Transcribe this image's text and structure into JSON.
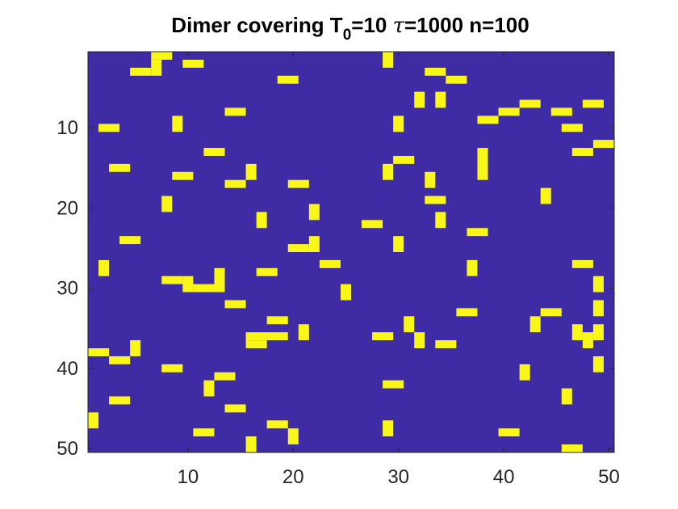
{
  "chart_data": {
    "type": "heatmap",
    "title": {
      "prefix": "Dimer covering T",
      "subscript": "0",
      "mid": "=10 ",
      "tau_symbol": "τ",
      "suffix": "=1000 n=100"
    },
    "xlabel": "",
    "ylabel": "",
    "xlim": [
      0.5,
      50.5
    ],
    "ylim": [
      0.5,
      50.5
    ],
    "y_direction": "reverse",
    "grid": false,
    "colors": {
      "background": "#3f2ba4",
      "dimer": "#f9f719"
    },
    "x_ticks": [
      10,
      20,
      30,
      40,
      50
    ],
    "y_ticks": [
      10,
      20,
      30,
      40,
      50
    ],
    "x_tick_labels": [
      "10",
      "20",
      "30",
      "40",
      "50"
    ],
    "y_tick_labels": [
      "10",
      "20",
      "30",
      "40",
      "50"
    ],
    "value_map": {
      "0": "empty",
      "1": "dimer"
    },
    "dimers": [
      [
        7,
        1,
        8,
        1
      ],
      [
        5,
        3,
        6,
        3
      ],
      [
        7,
        2,
        7,
        3
      ],
      [
        10,
        2,
        11,
        2
      ],
      [
        19,
        4,
        20,
        4
      ],
      [
        29,
        1,
        29,
        2
      ],
      [
        33,
        3,
        34,
        3
      ],
      [
        35,
        4,
        36,
        4
      ],
      [
        32,
        6,
        32,
        7
      ],
      [
        34,
        6,
        34,
        7
      ],
      [
        14,
        8,
        15,
        8
      ],
      [
        9,
        9,
        9,
        10
      ],
      [
        2,
        10,
        3,
        10
      ],
      [
        30,
        9,
        30,
        10
      ],
      [
        38,
        9,
        39,
        9
      ],
      [
        40,
        8,
        41,
        8
      ],
      [
        42,
        7,
        43,
        7
      ],
      [
        45,
        8,
        46,
        8
      ],
      [
        48,
        7,
        49,
        7
      ],
      [
        46,
        10,
        47,
        10
      ],
      [
        12,
        13,
        13,
        13
      ],
      [
        3,
        15,
        4,
        15
      ],
      [
        9,
        16,
        10,
        16
      ],
      [
        16,
        15,
        16,
        16
      ],
      [
        14,
        17,
        15,
        17
      ],
      [
        20,
        17,
        21,
        17
      ],
      [
        29,
        15,
        29,
        16
      ],
      [
        30,
        14,
        31,
        14
      ],
      [
        33,
        16,
        33,
        17
      ],
      [
        38,
        13,
        38,
        16
      ],
      [
        47,
        13,
        48,
        13
      ],
      [
        49,
        12,
        50,
        12
      ],
      [
        8,
        19,
        8,
        20
      ],
      [
        33,
        19,
        34,
        19
      ],
      [
        34,
        21,
        34,
        22
      ],
      [
        44,
        18,
        44,
        19
      ],
      [
        17,
        21,
        17,
        22
      ],
      [
        22,
        20,
        22,
        21
      ],
      [
        27,
        22,
        28,
        22
      ],
      [
        4,
        24,
        5,
        24
      ],
      [
        22,
        24,
        22,
        25
      ],
      [
        20,
        25,
        21,
        25
      ],
      [
        30,
        24,
        30,
        25
      ],
      [
        37,
        23,
        38,
        23
      ],
      [
        2,
        27,
        2,
        28
      ],
      [
        8,
        29,
        9,
        29
      ],
      [
        10,
        29,
        10,
        30
      ],
      [
        11,
        30,
        12,
        30
      ],
      [
        13,
        28,
        13,
        30
      ],
      [
        17,
        28,
        18,
        28
      ],
      [
        23,
        27,
        24,
        27
      ],
      [
        25,
        30,
        25,
        31
      ],
      [
        14,
        32,
        15,
        32
      ],
      [
        18,
        34,
        19,
        34
      ],
      [
        16,
        36,
        17,
        36
      ],
      [
        16,
        37,
        17,
        37
      ],
      [
        18,
        36,
        19,
        36
      ],
      [
        21,
        35,
        21,
        36
      ],
      [
        28,
        36,
        29,
        36
      ],
      [
        31,
        34,
        31,
        35
      ],
      [
        32,
        36,
        32,
        37
      ],
      [
        34,
        37,
        35,
        37
      ],
      [
        36,
        33,
        37,
        33
      ],
      [
        37,
        27,
        37,
        28
      ],
      [
        44,
        33,
        45,
        33
      ],
      [
        43,
        34,
        43,
        35
      ],
      [
        47,
        27,
        48,
        27
      ],
      [
        47,
        35,
        47,
        36
      ],
      [
        48,
        36,
        48,
        37
      ],
      [
        49,
        35,
        49,
        36
      ],
      [
        49,
        32,
        49,
        33
      ],
      [
        49,
        29,
        49,
        30
      ],
      [
        49,
        39,
        49,
        40
      ],
      [
        1,
        38,
        2,
        38
      ],
      [
        3,
        39,
        4,
        39
      ],
      [
        5,
        37,
        5,
        38
      ],
      [
        8,
        40,
        9,
        40
      ],
      [
        3,
        44,
        4,
        44
      ],
      [
        12,
        42,
        12,
        43
      ],
      [
        13,
        41,
        14,
        41
      ],
      [
        14,
        45,
        15,
        45
      ],
      [
        1,
        46,
        1,
        47
      ],
      [
        11,
        48,
        12,
        48
      ],
      [
        16,
        49,
        16,
        50
      ],
      [
        18,
        47,
        19,
        47
      ],
      [
        20,
        48,
        20,
        49
      ],
      [
        29,
        42,
        30,
        42
      ],
      [
        29,
        47,
        29,
        48
      ],
      [
        40,
        48,
        41,
        48
      ],
      [
        42,
        40,
        42,
        41
      ],
      [
        46,
        43,
        46,
        44
      ],
      [
        46,
        50,
        47,
        50
      ]
    ]
  }
}
